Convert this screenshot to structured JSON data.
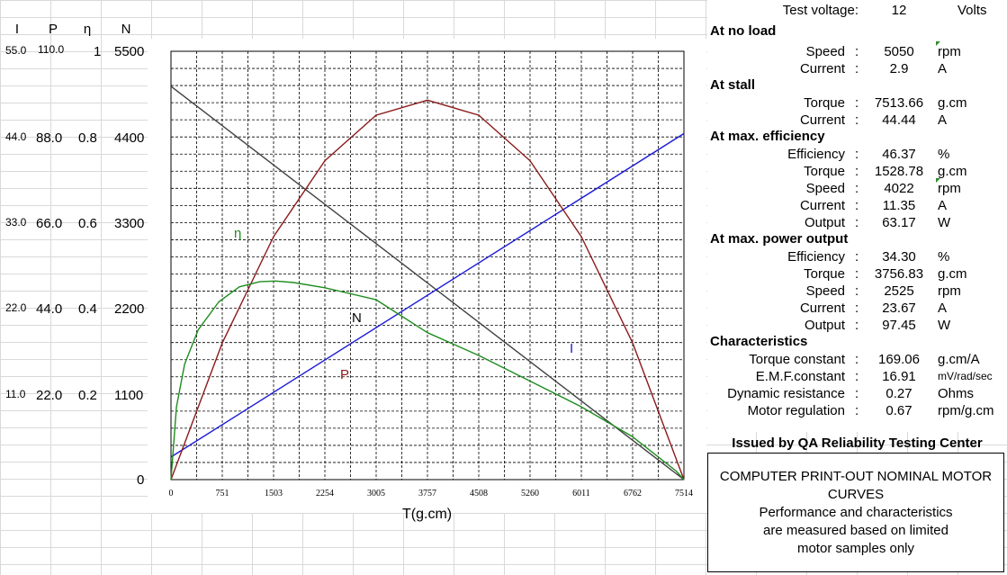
{
  "left_axis": {
    "headers": [
      "I",
      "P",
      "η",
      "N"
    ],
    "rows": [
      {
        "I": "55.0",
        "P": "110.0",
        "eta": "1",
        "N": "5500"
      },
      {
        "I": "44.0",
        "P": "88.0",
        "eta": "0.8",
        "N": "4400"
      },
      {
        "I": "33.0",
        "P": "66.0",
        "eta": "0.6",
        "N": "3300"
      },
      {
        "I": "22.0",
        "P": "44.0",
        "eta": "0.4",
        "N": "2200"
      },
      {
        "I": "11.0",
        "P": "22.0",
        "eta": "0.2",
        "N": "1100"
      }
    ],
    "zero": "0"
  },
  "chart_data": {
    "type": "line",
    "xlabel": "T(g.cm)",
    "x_ticks": [
      "0",
      "751",
      "1503",
      "2254",
      "3005",
      "3757",
      "4508",
      "5260",
      "6011",
      "6762",
      "7514"
    ],
    "xlim": [
      0,
      7514
    ],
    "grid": true,
    "ylims": {
      "I": [
        0,
        55
      ],
      "P": [
        0,
        110
      ],
      "eta": [
        0,
        1
      ],
      "N": [
        0,
        5500
      ]
    },
    "series": [
      {
        "name": "N",
        "color": "#404040",
        "x": [
          0,
          7514
        ],
        "y": [
          5050,
          0
        ]
      },
      {
        "name": "I",
        "color": "#1a1ad6",
        "x": [
          0,
          7514
        ],
        "y": [
          2.9,
          44.44
        ]
      },
      {
        "name": "P",
        "color": "#8b1a1a",
        "x": [
          0,
          751,
          1503,
          2254,
          3005,
          3757,
          4508,
          5260,
          6011,
          6762,
          7514
        ],
        "y": [
          0,
          35.1,
          62.4,
          81.9,
          93.6,
          97.45,
          93.6,
          81.9,
          62.4,
          35.1,
          0
        ]
      },
      {
        "name": "η",
        "color": "#1e8c1e",
        "x": [
          0,
          80,
          200,
          400,
          700,
          1000,
          1300,
          1529,
          1800,
          2254,
          3005,
          3757,
          4508,
          5260,
          6011,
          6762,
          7400,
          7514
        ],
        "y": [
          0,
          0.17,
          0.27,
          0.35,
          0.415,
          0.45,
          0.462,
          0.4637,
          0.46,
          0.448,
          0.42,
          0.343,
          0.29,
          0.23,
          0.17,
          0.1,
          0.02,
          0
        ]
      }
    ]
  },
  "panel": {
    "test_voltage": {
      "label": "Test voltage:",
      "value": "12",
      "unit": "Volts"
    },
    "no_load": {
      "title": "At no load",
      "speed": {
        "label": "Speed",
        "value": "5050",
        "unit": "rpm"
      },
      "current": {
        "label": "Current",
        "value": "2.9",
        "unit": "A"
      }
    },
    "stall": {
      "title": "At stall",
      "torque": {
        "label": "Torque",
        "value": "7513.66",
        "unit": "g.cm"
      },
      "current": {
        "label": "Current",
        "value": "44.44",
        "unit": "A"
      }
    },
    "max_eff": {
      "title": "At max. efficiency",
      "efficiency": {
        "label": "Efficiency",
        "value": "46.37",
        "unit": "%"
      },
      "torque": {
        "label": "Torque",
        "value": "1528.78",
        "unit": "g.cm"
      },
      "speed": {
        "label": "Speed",
        "value": "4022",
        "unit": "rpm"
      },
      "current": {
        "label": "Current",
        "value": "11.35",
        "unit": "A"
      },
      "output": {
        "label": "Output",
        "value": "63.17",
        "unit": "W"
      }
    },
    "max_power": {
      "title": "At max. power output",
      "efficiency": {
        "label": "Efficiency",
        "value": "34.30",
        "unit": "%"
      },
      "torque": {
        "label": "Torque",
        "value": "3756.83",
        "unit": "g.cm"
      },
      "speed": {
        "label": "Speed",
        "value": "2525",
        "unit": "rpm"
      },
      "current": {
        "label": "Current",
        "value": "23.67",
        "unit": "A"
      },
      "output": {
        "label": "Output",
        "value": "97.45",
        "unit": "W"
      }
    },
    "characteristics": {
      "title": "Characteristics",
      "torque_constant": {
        "label": "Torque constant",
        "value": "169.06",
        "unit": "g.cm/A"
      },
      "emf_constant": {
        "label": "E.M.F.constant",
        "value": "16.91",
        "unit": "mV/rad/sec"
      },
      "dynamic_resistance": {
        "label": "Dynamic resistance",
        "value": "0.27",
        "unit": "Ohms"
      },
      "motor_regulation": {
        "label": "Motor regulation",
        "value": "0.67",
        "unit": "rpm/g.cm"
      }
    },
    "colon": ":"
  },
  "issued_by": "Issued by QA Reliability Testing Center",
  "note": {
    "line1": "COMPUTER PRINT-OUT NOMINAL MOTOR",
    "line2": "CURVES",
    "line3": "Performance and characteristics",
    "line4": "are measured based on limited",
    "line5": "motor samples only"
  }
}
